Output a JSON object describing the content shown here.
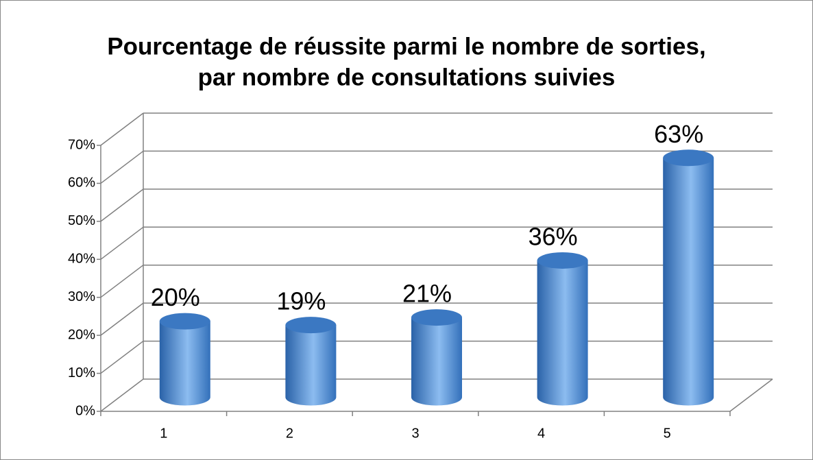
{
  "chart_data": {
    "type": "bar",
    "title": [
      "Pourcentage de réussite parmi le nombre de sorties,",
      "par nombre de consultations suivies"
    ],
    "categories": [
      "1",
      "2",
      "3",
      "4",
      "5"
    ],
    "values": [
      20,
      19,
      21,
      36,
      63
    ],
    "value_labels": [
      "20%",
      "19%",
      "21%",
      "36%",
      "63%"
    ],
    "color": "#4a8ad6",
    "ylim": [
      0,
      70
    ],
    "yticks": [
      {
        "value": 0,
        "label": "0%"
      },
      {
        "value": 10,
        "label": "10%"
      },
      {
        "value": 20,
        "label": "20%"
      },
      {
        "value": 30,
        "label": "30%"
      },
      {
        "value": 40,
        "label": "40%"
      },
      {
        "value": 50,
        "label": "50%"
      },
      {
        "value": 60,
        "label": "60%"
      },
      {
        "value": 70,
        "label": "70%"
      }
    ],
    "grid": true
  }
}
